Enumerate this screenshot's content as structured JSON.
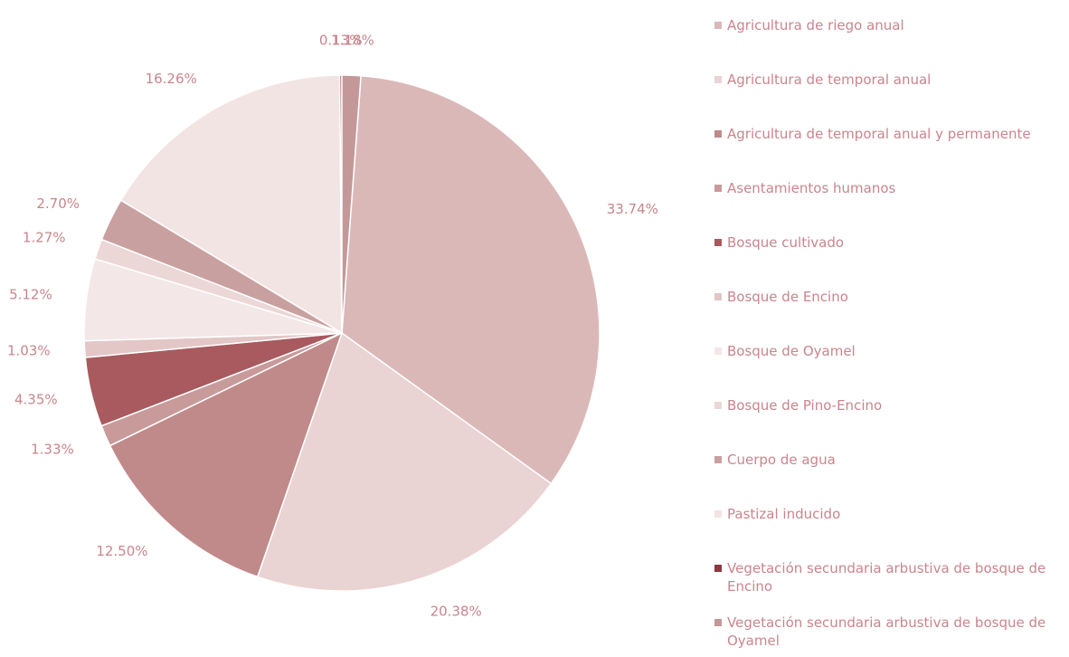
{
  "chart_data": {
    "type": "pie",
    "categories": [
      "Agricultura de riego anual",
      "Agricultura de temporal anual",
      "Agricultura de temporal anual y permanente",
      "Asentamientos humanos",
      "Bosque cultivado",
      "Bosque de Encino",
      "Bosque de Oyamel",
      "Bosque de Pino-Encino",
      "Cuerpo de agua",
      "Pastizal inducido",
      "Vegetación secundaria arbustiva de bosque de Encino",
      "Vegetación secundaria arbustiva de bosque de Oyamel"
    ],
    "values": [
      33.74,
      20.38,
      12.5,
      1.33,
      4.35,
      1.03,
      5.12,
      1.27,
      2.7,
      16.26,
      0.13,
      1.18
    ],
    "value_labels": [
      "33.74%",
      "20.38%",
      "12.50%",
      "1.33%",
      "4.35%",
      "1.03%",
      "5.12%",
      "1.27%",
      "2.70%",
      "16.26%",
      "0.13%",
      "1.18%"
    ],
    "colors": [
      "#dbb8b8",
      "#ead3d3",
      "#c08a8a",
      "#c99a9a",
      "#a85a5e",
      "#e3c6c6",
      "#f3e7e7",
      "#ecd7d7",
      "#c9a0a0",
      "#f3e4e4",
      "#8b3a3f",
      "#c49898"
    ],
    "legend": "right"
  }
}
